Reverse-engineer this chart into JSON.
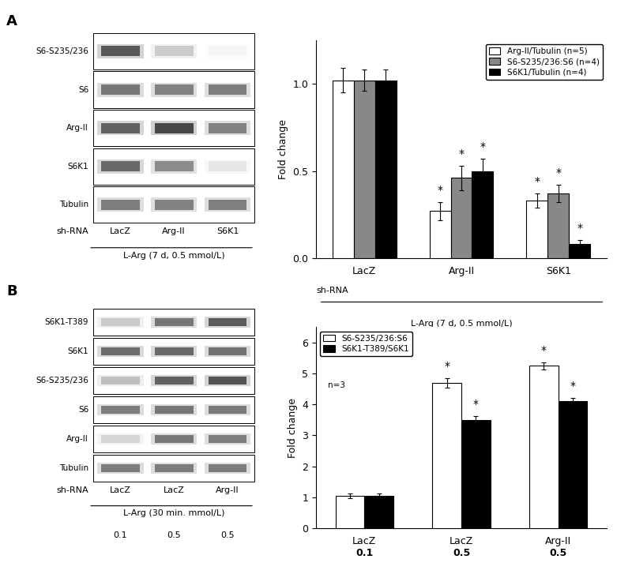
{
  "panel_A_label": "A",
  "panel_B_label": "B",
  "blot_A_labels": [
    "S6-S235/236",
    "S6",
    "Arg-II",
    "S6K1",
    "Tubulin"
  ],
  "blot_A_col_labels": [
    "LacZ",
    "Arg-II",
    "S6K1"
  ],
  "blot_A_xlabel": "sh-RNA",
  "blot_A_bottom_label": "L-Arg (7 d, 0.5 mmol/L)",
  "blot_B_labels": [
    "S6K1-T389",
    "S6K1",
    "S6-S235/236",
    "S6",
    "Arg-II",
    "Tubulin"
  ],
  "blot_B_col_labels": [
    "LacZ",
    "LacZ",
    "Arg-II"
  ],
  "blot_B_xlabel": "sh-RNA",
  "blot_B_bottom_label": "L-Arg (30 min. mmol/L)",
  "blot_B_bottom_values": [
    "0.1",
    "0.5",
    "0.5"
  ],
  "bar_A_groups": [
    "LacZ",
    "Arg-II",
    "S6K1"
  ],
  "bar_A_series": [
    {
      "label": "Arg-II/Tubulin (n=5)",
      "color": "white",
      "edgecolor": "black",
      "values": [
        1.02,
        0.27,
        0.33
      ],
      "errors": [
        0.07,
        0.05,
        0.04
      ]
    },
    {
      "label": "S6-S235/236:S6 (n=4)",
      "color": "#888888",
      "edgecolor": "black",
      "values": [
        1.02,
        0.46,
        0.37
      ],
      "errors": [
        0.06,
        0.07,
        0.05
      ]
    },
    {
      "label": "S6K1/Tubulin (n=4)",
      "color": "black",
      "edgecolor": "black",
      "values": [
        1.02,
        0.5,
        0.08
      ],
      "errors": [
        0.06,
        0.07,
        0.025
      ]
    }
  ],
  "bar_A_ylabel": "Fold change",
  "bar_A_xlabel_main": "sh-RNA",
  "bar_A_bottom_label": "L-Arg (7 d, 0.5 mmol/L)",
  "bar_A_ylim": [
    0,
    1.25
  ],
  "bar_A_yticks": [
    0.0,
    0.5,
    1.0
  ],
  "bar_A_significant": [
    [
      false,
      true,
      true
    ],
    [
      false,
      true,
      true
    ],
    [
      false,
      true,
      true
    ]
  ],
  "bar_B_groups": [
    "LacZ",
    "LacZ",
    "Arg-II"
  ],
  "bar_B_subvals": [
    "0.1",
    "0.5",
    "0.5"
  ],
  "bar_B_series": [
    {
      "label": "S6-S235/236:S6",
      "color": "white",
      "edgecolor": "black",
      "values": [
        1.05,
        4.7,
        5.25
      ],
      "errors": [
        0.08,
        0.15,
        0.12
      ]
    },
    {
      "label": "S6K1-T389/S6K1",
      "color": "black",
      "edgecolor": "black",
      "values": [
        1.05,
        3.5,
        4.1
      ],
      "errors": [
        0.07,
        0.12,
        0.12
      ]
    }
  ],
  "bar_B_ylabel": "Fold change",
  "bar_B_ylim": [
    0,
    6.5
  ],
  "bar_B_yticks": [
    0,
    1,
    2,
    3,
    4,
    5,
    6
  ],
  "bar_B_significant": [
    [
      false,
      true,
      true
    ],
    [
      false,
      true,
      true
    ]
  ],
  "bar_B_n_label": "n=3"
}
